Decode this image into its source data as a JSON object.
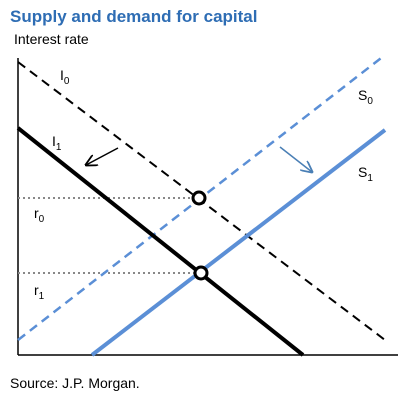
{
  "header": {
    "title": "Supply and demand for capital"
  },
  "axis": {
    "y_label": "Interest rate"
  },
  "curves": [
    {
      "base": "I",
      "sub": "0"
    },
    {
      "base": "I",
      "sub": "1"
    },
    {
      "base": "S",
      "sub": "0"
    },
    {
      "base": "S",
      "sub": "1"
    }
  ],
  "levels": [
    {
      "base": "r",
      "sub": "0"
    },
    {
      "base": "r",
      "sub": "1"
    }
  ],
  "footer": {
    "source": "Source: J.P. Morgan."
  }
}
